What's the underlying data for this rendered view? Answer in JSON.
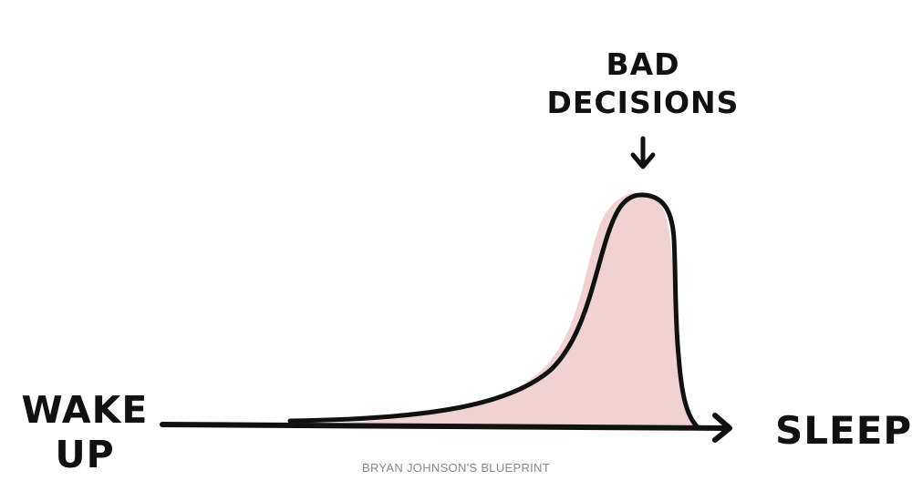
{
  "labels": {
    "start_line1": "WAKE",
    "start_line2": "UP",
    "end": "SLEEP",
    "peak_line1": "BAD",
    "peak_line2": "DECISIONS"
  },
  "footer": {
    "credit": "BRYAN JOHNSON'S BLUEPRINT"
  },
  "colors": {
    "ink": "#111111",
    "fill": "#f0d2d2",
    "footer_text": "#8a8a8a"
  }
}
